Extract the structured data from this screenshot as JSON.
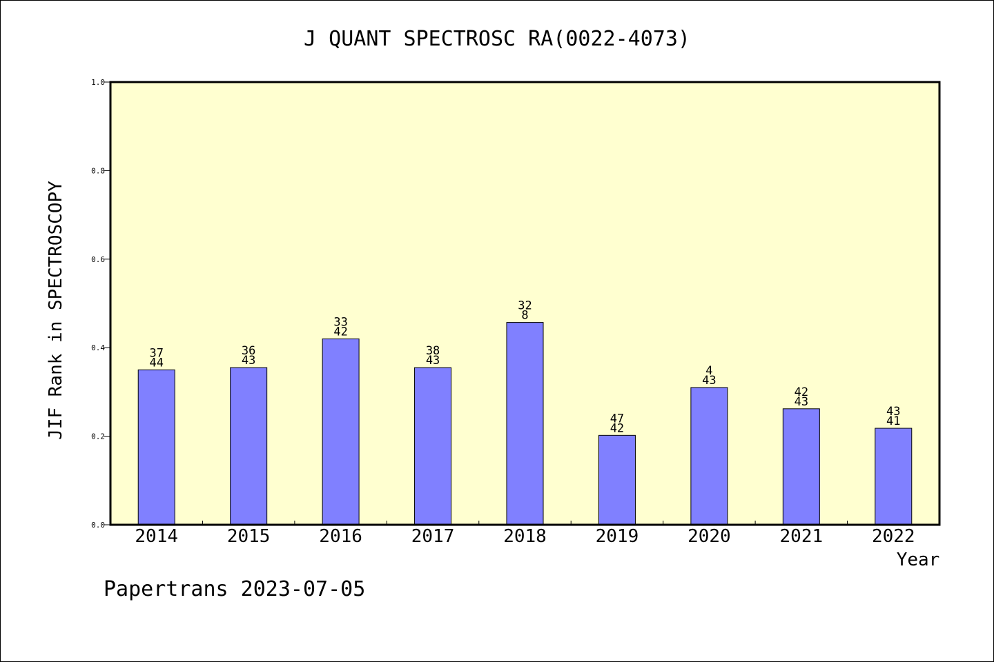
{
  "chart_data": {
    "type": "bar",
    "title": "J QUANT SPECTROSC RA(0022-4073)",
    "xlabel": "Year",
    "ylabel": "JIF Rank in SPECTROSCOPY",
    "footer": "Papertrans 2023-07-05",
    "categories": [
      "2014",
      "2015",
      "2016",
      "2017",
      "2018",
      "2019",
      "2020",
      "2021",
      "2022"
    ],
    "values": [
      0.35,
      0.355,
      0.42,
      0.355,
      0.457,
      0.202,
      0.31,
      0.262,
      0.218
    ],
    "bar_labels_top": [
      "37",
      "36",
      "33",
      "38",
      "32",
      "47",
      "4",
      "42",
      "43"
    ],
    "bar_labels_bottom": [
      "44",
      "43",
      "42",
      "43",
      "8",
      "42",
      "43",
      "43",
      "41"
    ],
    "ylim": [
      0,
      1.0
    ],
    "yticks": [
      "0.0",
      "0.2",
      "0.4",
      "0.6",
      "0.8",
      "1.0"
    ],
    "grid": false,
    "colors": {
      "bar": "#8080ff",
      "plot_background": "#ffffd0",
      "axis": "#000000"
    }
  }
}
